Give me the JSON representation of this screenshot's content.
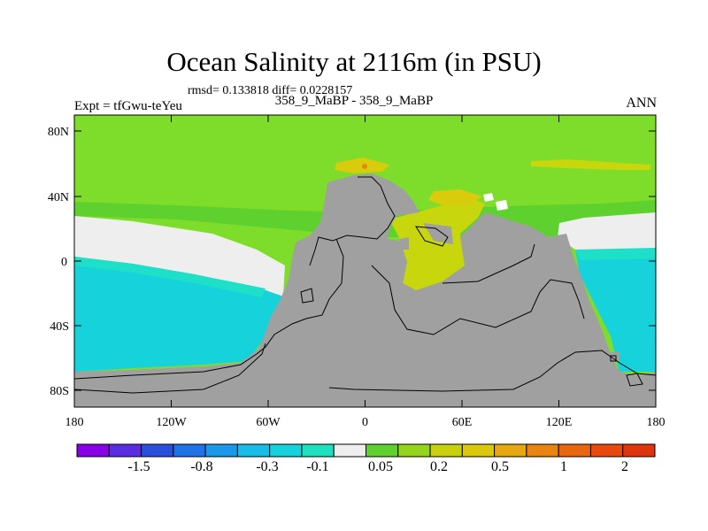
{
  "title": "Ocean Salinity at 2116m (in PSU)",
  "stats": "rmsd= 0.133818 diff= 0.0228157",
  "experiment": "Expt = tfGwu-teYeu",
  "comparison": "358_9_MaBP - 358_9_MaBP",
  "season": "ANN",
  "y_ticks": [
    "80N",
    "40N",
    "0",
    "40S",
    "80S"
  ],
  "x_ticks": [
    "180",
    "120W",
    "60W",
    "0",
    "60E",
    "120E",
    "180"
  ],
  "colorbar": {
    "colors": [
      "#8a00e6",
      "#5a2ee0",
      "#2a4fdc",
      "#1f72e8",
      "#1a98ea",
      "#18bce6",
      "#16d2da",
      "#1ee0bc",
      "#eeeeee",
      "#5ed12e",
      "#94d41c",
      "#c9d10c",
      "#dbc80b",
      "#e7a70e",
      "#e8840f",
      "#e8660e",
      "#e84a0d",
      "#e0340c"
    ],
    "labels": [
      "-1.5",
      "-0.8",
      "-0.3",
      "-0.1",
      "0.05",
      "0.2",
      "0.5",
      "1",
      "2"
    ]
  },
  "palette": {
    "land": "#a0a0a0",
    "green": "#7edd2a",
    "green_dark": "#5fd12f",
    "neutral": "#eeeeee",
    "cyan": "#16d2da",
    "cyan_light": "#1ee0c8",
    "yellow_green": "#c8d60e",
    "yellow": "#d8cc0c",
    "orange": "#e8840f"
  }
}
